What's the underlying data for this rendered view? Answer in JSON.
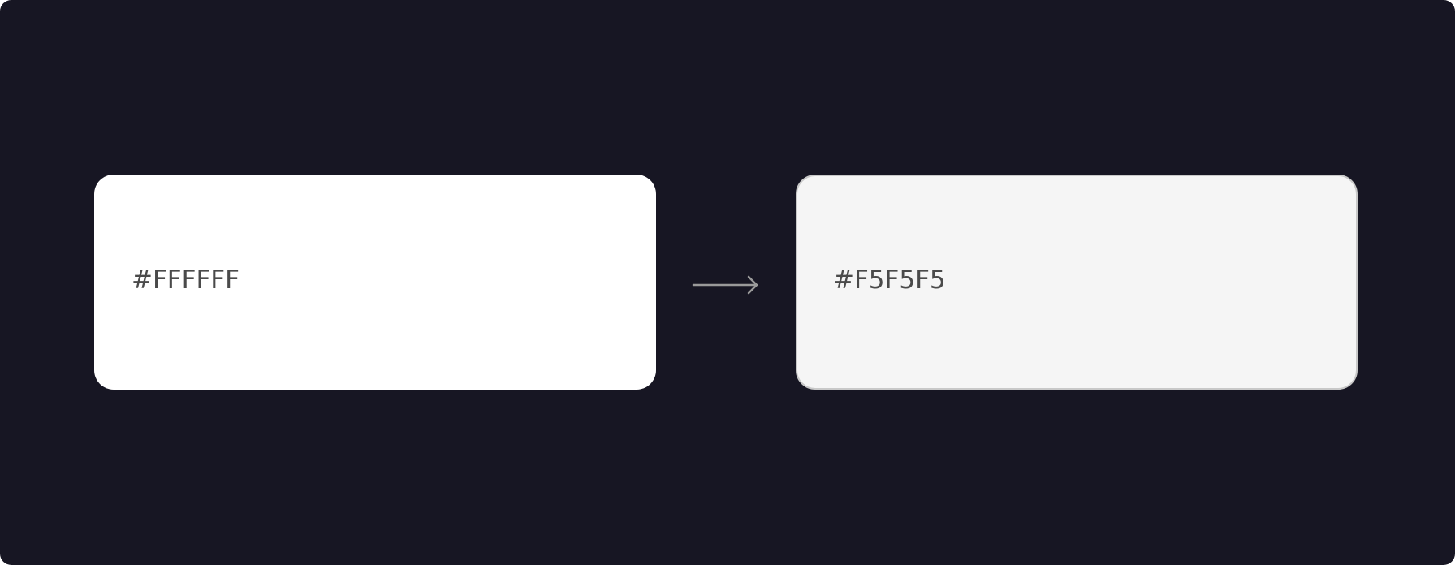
{
  "colors": {
    "background": "#171623",
    "label_text": "#4a4a4a",
    "arrow": "#9a9a9a"
  },
  "swatches": {
    "from": {
      "label": "#FFFFFF",
      "fill": "#FFFFFF"
    },
    "to": {
      "label": "#F5F5F5",
      "fill": "#F5F5F5"
    }
  },
  "arrow_icon": "arrow-right-icon"
}
